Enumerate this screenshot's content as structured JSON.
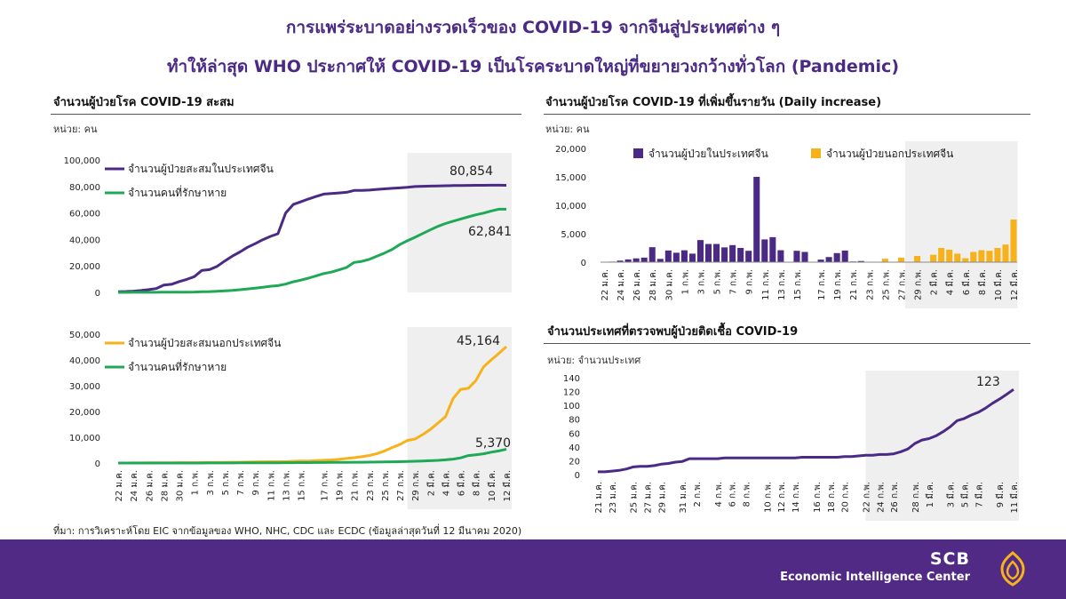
{
  "header": {
    "line1": "การแพร่ระบาดอย่างรวดเร็วของ COVID-19 จากจีนสู่ประเทศต่าง ๆ",
    "line2": "ทำให้ล่าสุด WHO ประกาศให้ COVID-19 เป็นโรคระบาดใหญ่ที่ขยายวงกว้างทั่วโลก (Pandemic)"
  },
  "sections": {
    "left_title": "จำนวนผู้ป่วยโรค COVID-19 สะสม",
    "left_unit": "หน่วย: คน",
    "right_top_title": "จำนวนผู้ป่วยโรค COVID-19 ที่เพิ่มขึ้นรายวัน (Daily increase)",
    "right_top_unit": "หน่วย: คน",
    "right_bottom_title": "จำนวนประเทศที่ตรวจพบผู้ป่วยติดเชื้อ COVID-19",
    "right_bottom_unit": "หน่วย: จำนวนประเทศ"
  },
  "source": "ที่มา: การวิเคราะห์โดย EIC จากข้อมูลของ WHO, NHC, CDC และ ECDC (ข้อมูลล่าสุดวันที่ 12 มีนาคม 2020)",
  "footer": {
    "brand": "SCB",
    "center": "Economic Intelligence Center"
  },
  "colors": {
    "purple": "#4b2a85",
    "green": "#1fa855",
    "orange": "#f7b21b",
    "shade": "#efefef",
    "footer": "#502a84"
  },
  "chart_data": [
    {
      "id": "china-cumulative",
      "type": "line",
      "x_tick_labels": [
        "22 ม.ค.",
        "24 ม.ค.",
        "26 ม.ค.",
        "28 ม.ค.",
        "30 ม.ค.",
        "1 ก.พ.",
        "3 ก.พ.",
        "5 ก.พ.",
        "7 ก.พ.",
        "9 ก.พ.",
        "11 ก.พ.",
        "13 ก.พ.",
        "15 ก.พ.",
        "17 ก.พ.",
        "19 ก.พ.",
        "21 ก.พ.",
        "23 ก.พ.",
        "25 ก.พ.",
        "27 ก.พ.",
        "29 ก.พ.",
        "2 มี.ค.",
        "4 มี.ค.",
        "6 มี.ค.",
        "8 มี.ค.",
        "10 มี.ค.",
        "12 มี.ค."
      ],
      "ylim": [
        0,
        100000
      ],
      "y_ticks": [
        "0",
        "20,000",
        "40,000",
        "60,000",
        "80,000",
        "100,000"
      ],
      "shaded_from_index": 38,
      "series": [
        {
          "name": "จำนวนผู้ป่วยสะสมในประเทศจีน",
          "color": "#4b2a85",
          "values": [
            548,
            643,
            920,
            1406,
            2075,
            2877,
            5509,
            6087,
            8141,
            9802,
            11891,
            16630,
            17208,
            19693,
            23680,
            27409,
            30553,
            34075,
            36778,
            39790,
            42306,
            44327,
            59895,
            66358,
            68413,
            70513,
            72434,
            74211,
            74619,
            75077,
            75550,
            77001,
            77022,
            77241,
            77754,
            78166,
            78600,
            78928,
            79356,
            79932,
            80136,
            80261,
            80386,
            80537,
            80690,
            80770,
            80823,
            80860,
            80887,
            80921,
            80932,
            80854
          ]
        },
        {
          "name": "จำนวนคนที่รักษาหาย",
          "color": "#1fa855",
          "values": [
            28,
            30,
            36,
            39,
            49,
            58,
            101,
            120,
            135,
            214,
            275,
            463,
            614,
            843,
            1115,
            1477,
            1999,
            2596,
            3219,
            3918,
            4636,
            5082,
            6213,
            7973,
            9294,
            10755,
            12462,
            14206,
            15299,
            16978,
            18810,
            22587,
            23394,
            24990,
            27323,
            29745,
            32495,
            36117,
            39002,
            41625,
            44462,
            47204,
            49856,
            52045,
            53726,
            55404,
            57065,
            58600,
            59897,
            61475,
            62793,
            62841
          ]
        }
      ],
      "annotations": {
        "china_last": "80,854",
        "recovered_last": "62,841"
      }
    },
    {
      "id": "outside-cumulative",
      "type": "line",
      "x_tick_labels": [
        "22 ม.ค.",
        "24 ม.ค.",
        "26 ม.ค.",
        "28 ม.ค.",
        "30 ม.ค.",
        "1 ก.พ.",
        "3 ก.พ.",
        "5 ก.พ.",
        "7 ก.พ.",
        "9 ก.พ.",
        "11 ก.พ.",
        "13 ก.พ.",
        "15 ก.พ.",
        "17 ก.พ.",
        "19 ก.พ.",
        "21 ก.พ.",
        "23 ก.พ.",
        "25 ก.พ.",
        "27 ก.พ.",
        "29 ก.พ.",
        "2 มี.ค.",
        "4 มี.ค.",
        "6 มี.ค.",
        "8 มี.ค.",
        "10 มี.ค.",
        "12 มี.ค."
      ],
      "ylim": [
        0,
        50000
      ],
      "y_ticks": [
        "0",
        "10,000",
        "20,000",
        "30,000",
        "40,000",
        "50,000"
      ],
      "shaded_from_index": 38,
      "series": [
        {
          "name": "จำนวนผู้ป่วยสะสมนอกประเทศจีน",
          "color": "#f7b21b",
          "values": [
            7,
            11,
            19,
            41,
            57,
            68,
            82,
            106,
            132,
            146,
            153,
            159,
            191,
            216,
            268,
            307,
            319,
            395,
            441,
            499,
            505,
            526,
            525,
            683,
            794,
            804,
            924,
            1073,
            1200,
            1402,
            1769,
            2069,
            2459,
            2918,
            3664,
            4691,
            6009,
            7169,
            8774,
            9300,
            11000,
            13000,
            15500,
            18000,
            25000,
            28600,
            29000,
            32000,
            37300,
            40000,
            42500,
            45164
          ]
        },
        {
          "name": "จำนวนคนที่รักษาหาย",
          "color": "#1fa855",
          "values": [
            0,
            0,
            0,
            2,
            2,
            3,
            3,
            5,
            6,
            8,
            11,
            15,
            20,
            27,
            34,
            42,
            52,
            60,
            70,
            80,
            95,
            110,
            130,
            150,
            165,
            180,
            200,
            220,
            240,
            260,
            280,
            300,
            320,
            340,
            380,
            420,
            470,
            530,
            600,
            680,
            780,
            900,
            1050,
            1250,
            1500,
            2000,
            2900,
            3200,
            3600,
            4200,
            4700,
            5370
          ]
        }
      ],
      "annotations": {
        "outside_last": "45,164",
        "recovered_last": "5,370"
      }
    },
    {
      "id": "daily-increase",
      "type": "bar",
      "x_tick_labels": [
        "22 ม.ค.",
        "24 ม.ค.",
        "26 ม.ค.",
        "28 ม.ค.",
        "30 ม.ค.",
        "1 ก.พ.",
        "3 ก.พ.",
        "5 ก.พ.",
        "7 ก.พ.",
        "9 ก.พ.",
        "11 ก.พ.",
        "13 ก.พ.",
        "15 ก.พ.",
        "17 ก.พ.",
        "19 ก.พ.",
        "21 ก.พ.",
        "23 ก.พ.",
        "25 ก.พ.",
        "27 ก.พ.",
        "29 ก.พ.",
        "2 มี.ค.",
        "4 มี.ค.",
        "6 มี.ค.",
        "8 มี.ค.",
        "10 มี.ค.",
        "12 มี.ค."
      ],
      "ylim": [
        0,
        20000
      ],
      "y_ticks": [
        "0",
        "5,000",
        "10,000",
        "15,000",
        "20,000"
      ],
      "shaded_from_index": 38,
      "series": [
        {
          "name": "จำนวนผู้ป่วยในประเทศจีน",
          "color": "#4b2a85",
          "values": [
            0,
            95,
            277,
            486,
            669,
            802,
            2632,
            578,
            2054,
            1661,
            2089,
            1500,
            3886,
            3200,
            3200,
            2600,
            3000,
            2500,
            2000,
            15000,
            4000,
            4400,
            2100,
            0,
            2000,
            1800,
            0,
            450,
            900,
            1600,
            2050,
            120,
            200,
            0,
            0,
            0,
            0,
            0,
            0,
            0,
            0,
            0,
            0,
            0,
            0,
            0,
            0,
            0,
            0,
            0,
            0,
            0
          ]
        },
        {
          "name": "จำนวนผู้ป่วยนอกประเทศจีน",
          "color": "#f7b21b",
          "values": [
            0,
            0,
            0,
            0,
            0,
            0,
            0,
            0,
            0,
            0,
            0,
            0,
            0,
            0,
            0,
            0,
            0,
            0,
            0,
            0,
            0,
            0,
            0,
            0,
            0,
            0,
            0,
            0,
            0,
            0,
            0,
            0,
            0,
            0,
            0,
            600,
            0,
            800,
            0,
            1100,
            0,
            1300,
            2500,
            2200,
            1500,
            700,
            1800,
            2100,
            2000,
            2500,
            3100,
            7500
          ]
        }
      ]
    },
    {
      "id": "country-count",
      "type": "line",
      "x_tick_labels": [
        "21 ม.ค.",
        "23 ม.ค.",
        "25 ม.ค.",
        "27 ม.ค.",
        "29 ม.ค.",
        "31 ม.ค.",
        "2 ก.พ.",
        "4 ก.พ.",
        "6 ก.พ.",
        "8 ก.พ.",
        "10 ก.พ.",
        "12 ก.พ.",
        "14 ก.พ.",
        "16 ก.พ.",
        "18 ก.พ.",
        "20 ก.พ.",
        "22 ก.พ.",
        "24 ก.พ.",
        "26 ก.พ.",
        "28 ก.พ.",
        "1 มี.ค.",
        "3 มี.ค.",
        "5 มี.ค.",
        "7 มี.ค.",
        "9 มี.ค.",
        "11 มี.ค."
      ],
      "ylim": [
        0,
        140
      ],
      "y_ticks": [
        "0",
        "20",
        "40",
        "60",
        "80",
        "100",
        "120",
        "140"
      ],
      "shaded_from_index": 38,
      "series": [
        {
          "name": "จำนวนประเทศ",
          "color": "#4b2a85",
          "values": [
            4,
            4,
            5,
            6,
            8,
            11,
            12,
            12,
            13,
            15,
            16,
            18,
            19,
            23,
            23,
            23,
            23,
            23,
            24,
            24,
            24,
            24,
            24,
            24,
            24,
            24,
            24,
            24,
            24,
            25,
            25,
            25,
            25,
            25,
            25,
            26,
            26,
            27,
            28,
            28,
            29,
            29,
            30,
            33,
            37,
            45,
            50,
            52,
            56,
            62,
            69,
            78,
            81,
            86,
            90,
            96,
            103,
            109,
            116,
            123
          ]
        }
      ],
      "annotations": {
        "last": "123"
      }
    }
  ]
}
